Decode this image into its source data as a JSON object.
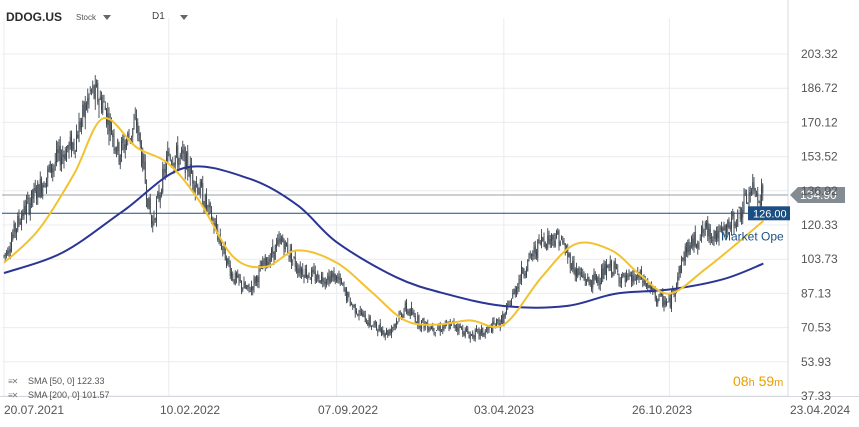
{
  "header": {
    "symbol": "DDOG.US",
    "type": "Stock",
    "timeframe": "D1"
  },
  "legend": [
    {
      "label": "SMA [50, 0] 122.33",
      "color": "#f2c230"
    },
    {
      "label": "SMA [200, 0] 101.57",
      "color": "#2a3595"
    }
  ],
  "timer": {
    "h": "08",
    "h_unit": "h",
    "m": "59",
    "m_unit": "m"
  },
  "colors": {
    "candles": "#3a434c",
    "sma50": "#f2c230",
    "sma200": "#2a3595",
    "price_tag": "#838b93",
    "level_line": "#1b4f82",
    "level_tag": "#1b4f82",
    "axis_text": "#555555",
    "grid": "#e9ecef",
    "timer": "#e8a000"
  },
  "chart_data": {
    "type": "line",
    "x_tick_labels": [
      "20.07.2021",
      "10.02.2022",
      "07.09.2022",
      "03.04.2023",
      "26.10.2023",
      "23.04.2024"
    ],
    "y_tick_labels": [
      "203.32",
      "186.72",
      "170.12",
      "153.52",
      "136.92",
      "120.33",
      "103.73",
      "87.13",
      "70.53",
      "53.93",
      "37.33"
    ],
    "ylim": [
      37.33,
      203.32
    ],
    "current_price": "134.90",
    "horizontal_level": "126.00",
    "level_label": "Market Ope",
    "grid": true,
    "series": [
      {
        "name": "SMA [50, 0] 122.33",
        "style": "line",
        "x": [
          "2021-07-20",
          "2021-09-01",
          "2021-10-15",
          "2021-11-20",
          "2022-01-01",
          "2022-02-10",
          "2022-03-20",
          "2022-05-01",
          "2022-06-10",
          "2022-07-20",
          "2022-09-07",
          "2022-10-20",
          "2022-12-01",
          "2023-01-10",
          "2023-02-20",
          "2023-04-03",
          "2023-05-20",
          "2023-07-01",
          "2023-08-15",
          "2023-09-20",
          "2023-10-26",
          "2023-12-10",
          "2024-01-20",
          "2024-02-20"
        ],
        "values": [
          102,
          118,
          145,
          172,
          158,
          150,
          132,
          105,
          100,
          108,
          102,
          88,
          74,
          72,
          74,
          72,
          95,
          111,
          108,
          96,
          87,
          99,
          112,
          122.33
        ]
      },
      {
        "name": "SMA [200, 0] 101.57",
        "style": "line",
        "x": [
          "2021-07-20",
          "2021-10-01",
          "2021-12-15",
          "2022-03-01",
          "2022-05-20",
          "2022-07-20",
          "2022-09-07",
          "2022-11-20",
          "2023-01-20",
          "2023-04-03",
          "2023-06-20",
          "2023-08-20",
          "2023-10-26",
          "2024-01-01",
          "2024-02-20"
        ],
        "values": [
          97,
          107,
          127,
          148,
          143,
          130,
          112,
          95,
          87,
          81,
          81,
          87,
          89,
          94,
          101.57
        ]
      },
      {
        "name": "",
        "style": "candles",
        "x": [
          "2021-07-20",
          "2021-08-10",
          "2021-09-01",
          "2021-09-25",
          "2021-10-15",
          "2021-11-05",
          "2021-11-20",
          "2021-12-10",
          "2022-01-01",
          "2022-01-20",
          "2022-02-10",
          "2022-03-01",
          "2022-03-20",
          "2022-04-10",
          "2022-05-01",
          "2022-05-20",
          "2022-06-10",
          "2022-07-01",
          "2022-07-20",
          "2022-08-10",
          "2022-09-07",
          "2022-09-25",
          "2022-10-20",
          "2022-11-10",
          "2022-12-01",
          "2022-12-20",
          "2023-01-10",
          "2023-02-01",
          "2023-02-20",
          "2023-03-10",
          "2023-04-03",
          "2023-04-25",
          "2023-05-20",
          "2023-06-10",
          "2023-07-01",
          "2023-07-20",
          "2023-08-15",
          "2023-09-01",
          "2023-09-20",
          "2023-10-10",
          "2023-10-26",
          "2023-11-15",
          "2023-12-10",
          "2023-12-28",
          "2024-01-20",
          "2024-02-05",
          "2024-02-20"
        ],
        "values": [
          105,
          125,
          138,
          153,
          160,
          185,
          180,
          155,
          170,
          120,
          155,
          152,
          138,
          118,
          95,
          88,
          102,
          113,
          100,
          95,
          95,
          82,
          72,
          68,
          80,
          73,
          70,
          72,
          67,
          68,
          75,
          97,
          113,
          115,
          98,
          92,
          100,
          93,
          95,
          85,
          82,
          108,
          118,
          115,
          125,
          137,
          135
        ]
      }
    ]
  }
}
